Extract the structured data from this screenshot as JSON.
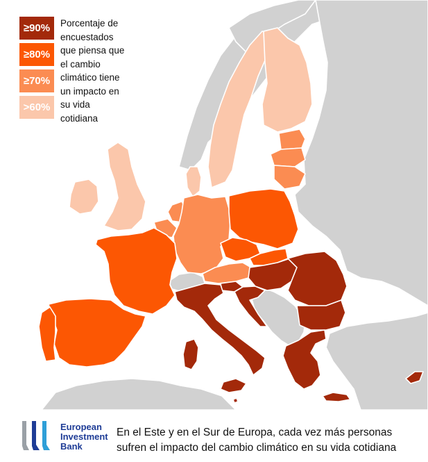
{
  "legend": {
    "items": [
      {
        "label": "≥90%",
        "color": "#a3290a"
      },
      {
        "label": "≥80%",
        "color": "#fc5703"
      },
      {
        "label": "≥70%",
        "color": "#fb8c52"
      },
      {
        "label": ">60%",
        "color": "#fbc7ab"
      }
    ],
    "description_lines": [
      "Porcentaje de",
      "encuestados",
      "que piensa que",
      "el cambio",
      "climático tiene",
      "un impacto en",
      "su vida",
      "cotidiana"
    ]
  },
  "colors": {
    "non_eu_land": "#d1d1d1",
    "sea": "#ffffff",
    "border": "#ffffff"
  },
  "map_regions": [
    {
      "name": "italy",
      "category": "≥90%"
    },
    {
      "name": "croatia",
      "category": "≥90%"
    },
    {
      "name": "hungary",
      "category": "≥90%"
    },
    {
      "name": "romania",
      "category": "≥90%"
    },
    {
      "name": "bulgaria",
      "category": "≥90%"
    },
    {
      "name": "greece",
      "category": "≥90%"
    },
    {
      "name": "cyprus",
      "category": "≥90%"
    },
    {
      "name": "malta",
      "category": "≥90%"
    },
    {
      "name": "slovenia",
      "category": "≥90%"
    },
    {
      "name": "france",
      "category": "≥80%"
    },
    {
      "name": "spain",
      "category": "≥80%"
    },
    {
      "name": "portugal",
      "category": "≥80%"
    },
    {
      "name": "poland",
      "category": "≥80%"
    },
    {
      "name": "czechia",
      "category": "≥80%"
    },
    {
      "name": "slovakia",
      "category": "≥80%"
    },
    {
      "name": "germany",
      "category": "≥70%"
    },
    {
      "name": "netherlands",
      "category": "≥70%"
    },
    {
      "name": "belgium",
      "category": "≥70%"
    },
    {
      "name": "luxembourg",
      "category": "≥70%"
    },
    {
      "name": "austria",
      "category": "≥70%"
    },
    {
      "name": "lithuania",
      "category": "≥70%"
    },
    {
      "name": "latvia",
      "category": "≥70%"
    },
    {
      "name": "estonia",
      "category": "≥70%"
    },
    {
      "name": "sweden",
      "category": ">60%"
    },
    {
      "name": "finland",
      "category": ">60%"
    },
    {
      "name": "denmark",
      "category": ">60%"
    },
    {
      "name": "ireland",
      "category": ">60%"
    },
    {
      "name": "united-kingdom",
      "category": ">60%"
    }
  ],
  "footer": {
    "logo_lines": [
      "European",
      "Investment",
      "Bank"
    ],
    "logo_colors": [
      "#9aa0a6",
      "#1e3c96",
      "#2e9fd8"
    ],
    "caption_lines": [
      "En el Este y en el Sur de Europa, cada vez más personas",
      "sufren el impacto del cambio climático en su vida cotidiana"
    ]
  }
}
